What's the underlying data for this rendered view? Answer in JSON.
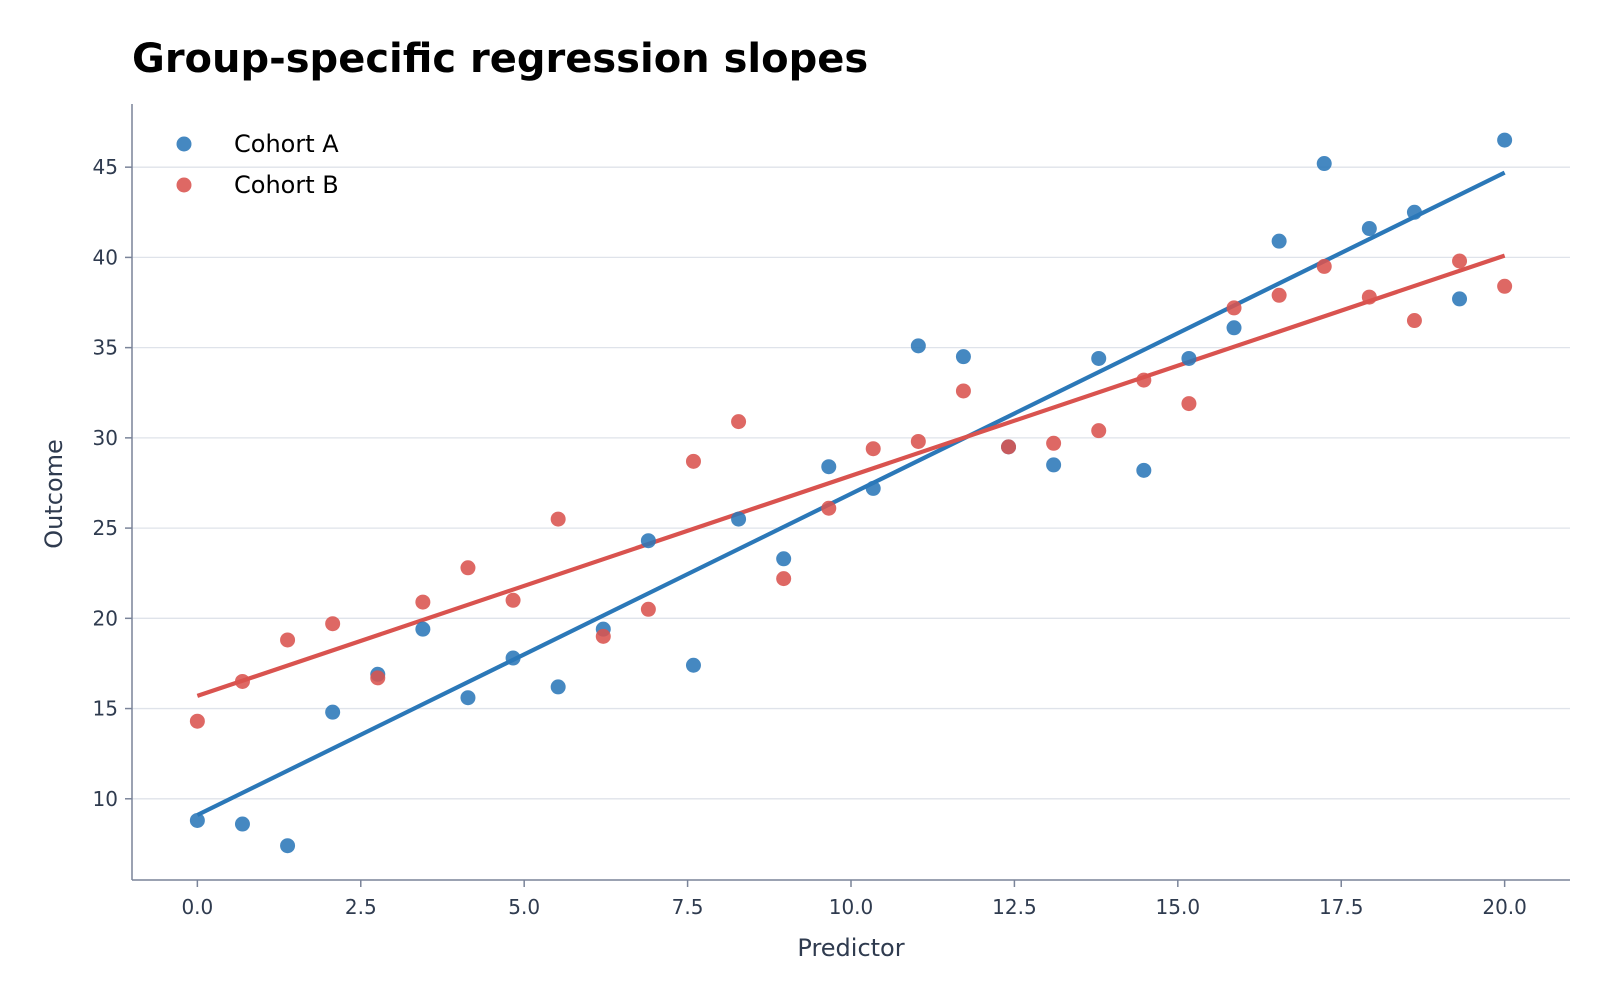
{
  "chart_data": {
    "type": "scatter",
    "title": "Group-specific regression slopes",
    "xlabel": "Predictor",
    "ylabel": "Outcome",
    "xlim": [
      -1,
      21
    ],
    "ylim": [
      5.5,
      48.5
    ],
    "xticks": [
      "0.0",
      "2.5",
      "5.0",
      "7.5",
      "10.0",
      "12.5",
      "15.0",
      "17.5",
      "20.0"
    ],
    "xtick_values": [
      0,
      2.5,
      5,
      7.5,
      10,
      12.5,
      15,
      17.5,
      20
    ],
    "yticks": [
      "10",
      "15",
      "20",
      "25",
      "30",
      "35",
      "40",
      "45"
    ],
    "ytick_values": [
      10,
      15,
      20,
      25,
      30,
      35,
      40,
      45
    ],
    "grid": "horizontal",
    "legend_position": "top-left",
    "series": [
      {
        "name": "Cohort A",
        "color": "#2b78b8",
        "x": [
          0,
          0.69,
          1.38,
          2.07,
          2.76,
          3.45,
          4.14,
          4.83,
          5.52,
          6.21,
          6.9,
          7.59,
          8.28,
          8.97,
          9.66,
          10.34,
          11.03,
          11.72,
          12.41,
          13.1,
          13.79,
          14.48,
          15.17,
          15.86,
          16.55,
          17.24,
          17.93,
          18.62,
          19.31,
          20
        ],
        "y": [
          8.8,
          8.6,
          7.4,
          14.8,
          16.9,
          19.4,
          15.6,
          17.8,
          16.2,
          19.4,
          24.3,
          17.4,
          25.5,
          23.3,
          28.4,
          27.2,
          35.1,
          34.5,
          29.5,
          28.5,
          34.4,
          28.2,
          34.4,
          36.1,
          40.9,
          45.2,
          41.6,
          42.5,
          37.7,
          46.5
        ],
        "fit": {
          "x": [
            0,
            20
          ],
          "y": [
            9.1,
            44.7
          ]
        }
      },
      {
        "name": "Cohort B",
        "color": "#d9534f",
        "x": [
          0,
          0.69,
          1.38,
          2.07,
          2.76,
          3.45,
          4.14,
          4.83,
          5.52,
          6.21,
          6.9,
          7.59,
          8.28,
          8.97,
          9.66,
          10.34,
          11.03,
          11.72,
          12.41,
          13.1,
          13.79,
          14.48,
          15.17,
          15.86,
          16.55,
          17.24,
          17.93,
          18.62,
          19.31,
          20
        ],
        "y": [
          14.3,
          16.5,
          18.8,
          19.7,
          16.7,
          20.9,
          22.8,
          21.0,
          25.5,
          19.0,
          20.5,
          28.7,
          30.9,
          22.2,
          26.1,
          29.4,
          29.8,
          32.6,
          29.5,
          29.7,
          30.4,
          33.2,
          31.9,
          37.2,
          37.9,
          39.5,
          37.8,
          36.5,
          39.8,
          38.4
        ],
        "fit": {
          "x": [
            0,
            20
          ],
          "y": [
            15.7,
            40.1
          ]
        }
      }
    ]
  }
}
